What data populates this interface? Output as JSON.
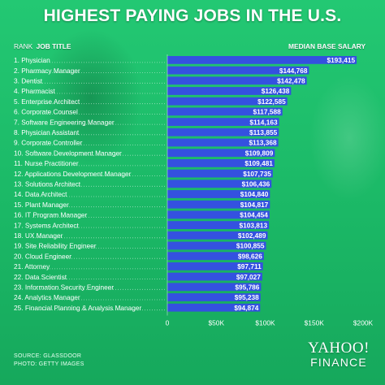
{
  "title": "HIGHEST PAYING JOBS IN THE U.S.",
  "headers": {
    "rank": "RANK",
    "job_title": "JOB TITLE",
    "salary": "MEDIAN BASE SALARY"
  },
  "colors": {
    "background": "#1ec46e",
    "bar": "#3451e0",
    "text": "#ffffff"
  },
  "chart_data": {
    "type": "bar",
    "orientation": "horizontal",
    "categories": [
      "1. Physician",
      "2. Pharmacy Manager",
      "3. Dentist",
      "4. Pharmacist",
      "5. Enterprise Architect",
      "6. Corporate Counsel",
      "7. Software Engineering Manager",
      "8. Physician Assistant",
      "9. Corporate Controller",
      "10. Software Development Manager",
      "11. Nurse Practitioner",
      "12. Applications Development Manager",
      "13. Solutions Architect",
      "14. Data Architect",
      "15. Plant Manager",
      "16. IT Program Manager",
      "17. Systems Architect",
      "18. UX Manager",
      "19. Site Reliability Engineer",
      "20. Cloud Engineer",
      "21. Attorney",
      "22. Data Scientist",
      "23. Information Security Engineer",
      "24. Analytics Manager",
      "25. Financial Planning & Analysis Manager"
    ],
    "values": [
      193415,
      144768,
      142478,
      126438,
      122585,
      117588,
      114163,
      113855,
      113368,
      109809,
      109481,
      107735,
      106436,
      104840,
      104817,
      104454,
      103813,
      102489,
      100855,
      98626,
      97711,
      97027,
      95786,
      95238,
      94874
    ],
    "value_labels": [
      "$193,415",
      "$144,768",
      "$142,478",
      "$126,438",
      "$122,585",
      "$117,588",
      "$114,163",
      "$113,855",
      "$113,368",
      "$109,809",
      "$109,481",
      "$107,735",
      "$106,436",
      "$104,840",
      "$104,817",
      "$104,454",
      "$103,813",
      "$102,489",
      "$100,855",
      "$98,626",
      "$97,711",
      "$97,027",
      "$95,786",
      "$95,238",
      "$94,874"
    ],
    "xlim": [
      0,
      200000
    ],
    "x_ticks": [
      0,
      50000,
      100000,
      150000,
      200000
    ],
    "x_tick_labels": [
      "0",
      "$50K",
      "$100K",
      "$150K",
      "$200K"
    ],
    "grid": false
  },
  "footer": {
    "source": "SOURCE:  GLASSDOOR",
    "photo": "PHOTO: GETTY IMAGES"
  },
  "logo": {
    "line1": "YAHOO!",
    "line2": "FINANCE"
  }
}
